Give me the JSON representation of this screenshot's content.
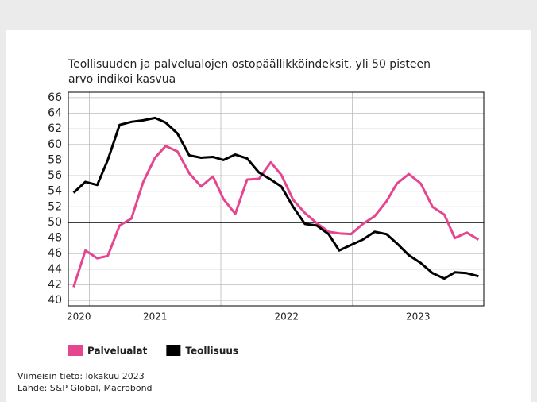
{
  "chart_data": {
    "type": "line",
    "title": [
      "Teollisuuden ja palvelualojen ostopäällikköindeksit, yli 50 pisteen",
      "arvo indikoi kasvua"
    ],
    "x": [
      2020.88,
      2020.97,
      2021.06,
      2021.14,
      2021.23,
      2021.32,
      2021.41,
      2021.5,
      2021.58,
      2021.67,
      2021.76,
      2021.85,
      2021.94,
      2022.02,
      2022.11,
      2022.2,
      2022.29,
      2022.38,
      2022.46,
      2022.55,
      2022.64,
      2022.73,
      2022.82,
      2022.9,
      2022.99,
      2023.08,
      2023.17,
      2023.26,
      2023.34,
      2023.43,
      2023.52,
      2023.61,
      2023.7,
      2023.78,
      2023.87,
      2023.96
    ],
    "series": [
      {
        "name": "Palvelualat",
        "color": "#e5468f",
        "values": [
          41.7,
          46.4,
          45.4,
          45.7,
          49.6,
          50.5,
          55.2,
          58.3,
          59.8,
          59.1,
          56.3,
          54.6,
          55.9,
          53.0,
          51.1,
          55.5,
          55.6,
          57.7,
          56.1,
          52.9,
          51.2,
          49.9,
          48.8,
          48.6,
          48.5,
          49.8,
          50.8,
          52.7,
          55.0,
          56.2,
          55.0,
          52.0,
          51.0,
          48.0,
          48.7,
          47.8
        ]
      },
      {
        "name": "Teollisuus",
        "color": "#000000",
        "values": [
          53.8,
          55.2,
          54.8,
          58.0,
          62.5,
          62.9,
          63.1,
          63.4,
          62.8,
          61.4,
          58.6,
          58.3,
          58.4,
          58.0,
          58.7,
          58.2,
          56.4,
          55.5,
          54.6,
          52.0,
          49.8,
          49.6,
          48.5,
          46.4,
          47.1,
          47.8,
          48.8,
          48.5,
          47.3,
          45.8,
          44.8,
          43.5,
          42.8,
          43.6,
          43.5,
          43.1
        ]
      }
    ],
    "xlim": [
      2020.84,
      2024.0
    ],
    "xticks": [
      {
        "value": 2020.92,
        "label": "2020"
      },
      {
        "value": 2021.5,
        "label": "2021"
      },
      {
        "value": 2022.5,
        "label": "2022"
      },
      {
        "value": 2023.5,
        "label": "2023"
      }
    ],
    "x_gridlines": [
      2021,
      2022,
      2023
    ],
    "ylim": [
      39.3,
      66.7
    ],
    "yticks": [
      40,
      42,
      44,
      46,
      48,
      50,
      52,
      54,
      56,
      58,
      60,
      62,
      64,
      66
    ],
    "reference_line": 50,
    "grid": true,
    "notes": [
      "Viimeisin tieto: lokakuu 2023",
      "Lähde: S&P Global, Macrobond"
    ]
  }
}
